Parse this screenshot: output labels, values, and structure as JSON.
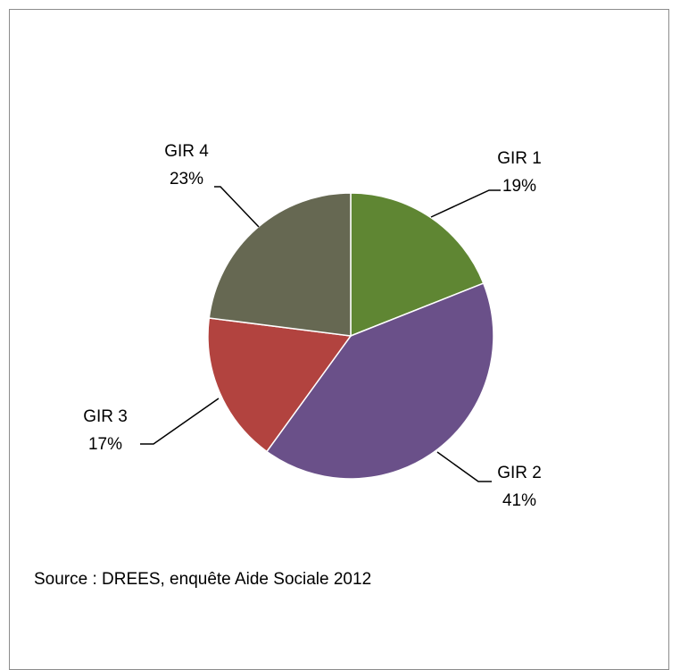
{
  "chart_data": {
    "type": "pie",
    "slices": [
      {
        "label": "GIR 1",
        "value": 19,
        "value_label": "19%",
        "color": "#5f8633"
      },
      {
        "label": "GIR 2",
        "value": 41,
        "value_label": "41%",
        "color": "#6a5089"
      },
      {
        "label": "GIR 3",
        "value": 17,
        "value_label": "17%",
        "color": "#b2433f"
      },
      {
        "label": "GIR 4",
        "value": 23,
        "value_label": "23%",
        "color": "#666852"
      }
    ],
    "start": "top",
    "direction": "clockwise",
    "legend": "none",
    "labels_placement": "outside-with-leader-lines"
  },
  "footer": {
    "source": "Source : DREES, enquête Aide Sociale 2012"
  }
}
